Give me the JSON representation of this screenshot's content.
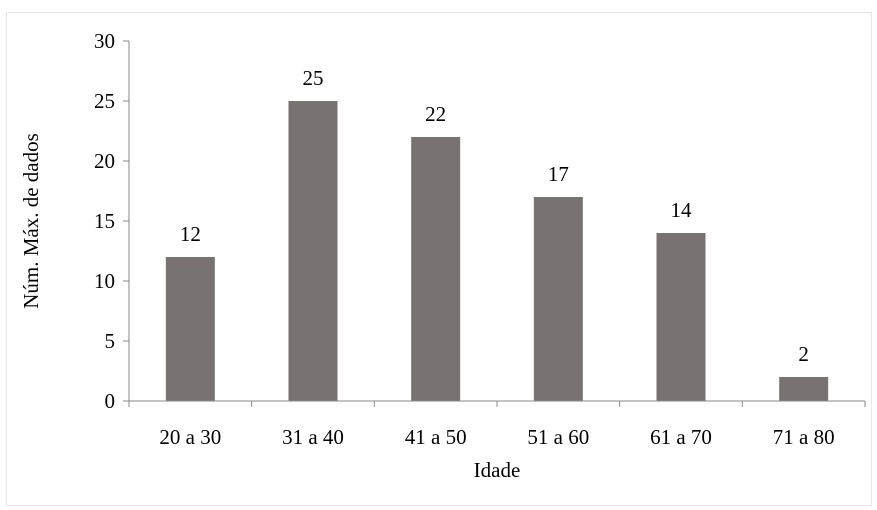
{
  "chart_data": {
    "type": "bar",
    "title": "",
    "xlabel": "Idade",
    "ylabel": "Núm. Máx. de dados",
    "categories": [
      "20 a 30",
      "31 a 40",
      "41 a 50",
      "51 a 60",
      "61 a 70",
      "71 a 80"
    ],
    "values": [
      12,
      25,
      22,
      17,
      14,
      2
    ],
    "ylim": [
      0,
      30
    ],
    "yticks": [
      0,
      5,
      10,
      15,
      20,
      25,
      30
    ],
    "grid": false,
    "legend": "none",
    "bar_color": "#787371",
    "axis_color": "#8a8a8a"
  }
}
